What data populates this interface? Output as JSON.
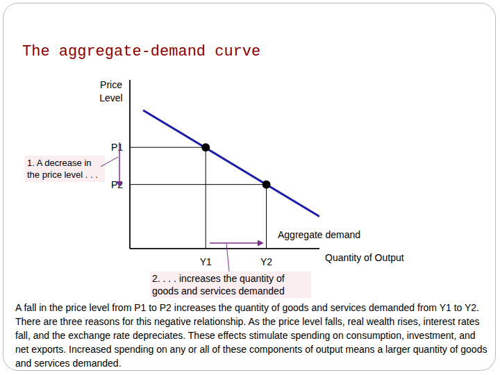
{
  "chart_data": {
    "type": "line",
    "title": "The aggregate-demand curve",
    "x_label": "Quantity of Output",
    "y_label": "Price Level",
    "xlim": [
      0,
      100
    ],
    "ylim": [
      0,
      100
    ],
    "xticks": [
      {
        "value": 40,
        "label": "Y1"
      },
      {
        "value": 72,
        "label": "Y2"
      }
    ],
    "yticks": [
      {
        "value": 60,
        "label": "P1"
      },
      {
        "value": 38,
        "label": "P2"
      }
    ],
    "grid": false,
    "series": [
      {
        "name": "Aggregate demand",
        "color": "#1c1ca8",
        "x": [
          7,
          100
        ],
        "values": [
          82,
          19
        ]
      },
      {
        "type": "scatter",
        "color": "#000000",
        "marker": "circle",
        "x": [
          40,
          72
        ],
        "values": [
          60,
          38
        ]
      }
    ],
    "annotations": [
      "1. A decrease in the price level . . .",
      "2. . . . increases the quantity of goods and services demanded"
    ],
    "caption": "A fall in the price level from P1 to P2 increases the quantity of goods and services demanded from Y1 to Y2. There are three reasons for this negative relationship. As the price level falls, real wealth rises, interest rates fall, and the exchange rate depreciates. These effects stimulate spending on consumption, investment, and net exports. Increased spending on any or all of these components of output means a larger quantity of goods and services demanded."
  }
}
